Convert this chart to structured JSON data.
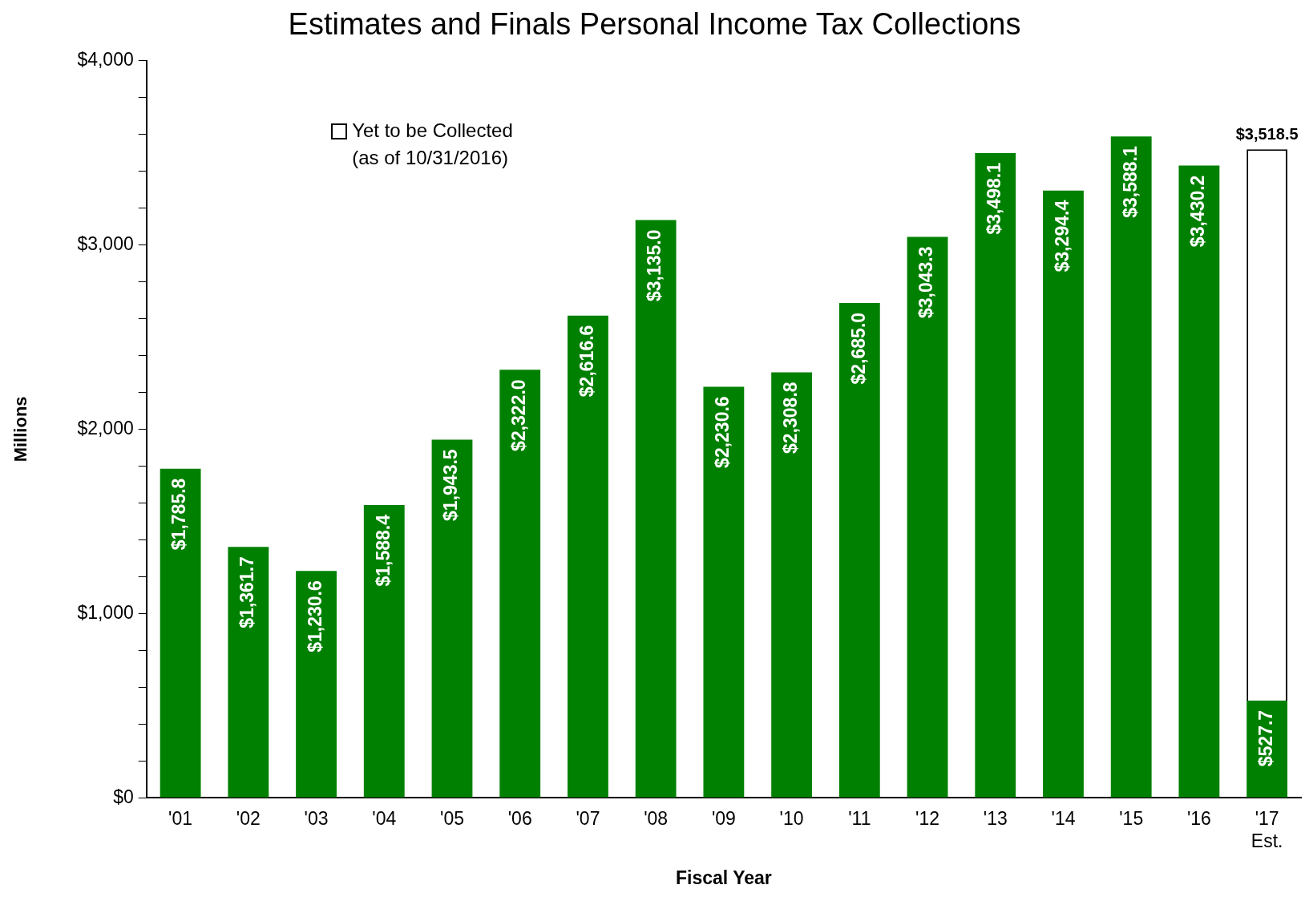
{
  "chart_data": {
    "type": "bar",
    "title": "Estimates and Finals Personal Income Tax Collections",
    "xlabel": "Fiscal Year",
    "ylabel": "Millions",
    "categories": [
      "'01",
      "'02",
      "'03",
      "'04",
      "'05",
      "'06",
      "'07",
      "'08",
      "'09",
      "'10",
      "'11",
      "'12",
      "'13",
      "'14",
      "'15",
      "'16",
      "'17 Est."
    ],
    "stacked": true,
    "series": [
      {
        "color": "#008000",
        "values": [
          1785.8,
          1361.7,
          1230.6,
          1588.4,
          1943.5,
          2322.0,
          2616.6,
          3135.0,
          2230.6,
          2308.8,
          2685.0,
          3043.3,
          3498.1,
          3294.4,
          3588.1,
          3430.2,
          527.7
        ],
        "value_labels": [
          "$1,785.8",
          "$1,361.7",
          "$1,230.6",
          "$1,588.4",
          "$1,943.5",
          "$2,322.0",
          "$2,616.6",
          "$3,135.0",
          "$2,230.6",
          "$2,308.8",
          "$2,685.0",
          "$3,043.3",
          "$3,498.1",
          "$3,294.4",
          "$3,588.1",
          "$3,430.2",
          "$527.7"
        ]
      },
      {
        "name": "Yet to be Collected (as of 10/31/2016)",
        "color": "#ffffff",
        "values": [
          null,
          null,
          null,
          null,
          null,
          null,
          null,
          null,
          null,
          null,
          null,
          null,
          null,
          null,
          null,
          null,
          2990.8
        ]
      }
    ],
    "totals": [
      null,
      null,
      null,
      null,
      null,
      null,
      null,
      null,
      null,
      null,
      null,
      null,
      null,
      null,
      null,
      null,
      "$3,518.5"
    ],
    "ylim": [
      0,
      4000
    ],
    "yticks": [
      {
        "value": 0,
        "label": "$0"
      },
      {
        "value": 200,
        "label": null
      },
      {
        "value": 400,
        "label": null
      },
      {
        "value": 600,
        "label": null
      },
      {
        "value": 800,
        "label": null
      },
      {
        "value": 1000,
        "label": "$1,000"
      },
      {
        "value": 1200,
        "label": null
      },
      {
        "value": 1400,
        "label": null
      },
      {
        "value": 1600,
        "label": null
      },
      {
        "value": 1800,
        "label": null
      },
      {
        "value": 2000,
        "label": "$2,000"
      },
      {
        "value": 2200,
        "label": null
      },
      {
        "value": 2400,
        "label": null
      },
      {
        "value": 2600,
        "label": null
      },
      {
        "value": 2800,
        "label": null
      },
      {
        "value": 3000,
        "label": "$3,000"
      },
      {
        "value": 3200,
        "label": null
      },
      {
        "value": 3400,
        "label": null
      },
      {
        "value": 3600,
        "label": null
      },
      {
        "value": 3800,
        "label": null
      },
      {
        "value": 4000,
        "label": "$4,000"
      }
    ],
    "grid": false,
    "legend": "top left"
  }
}
